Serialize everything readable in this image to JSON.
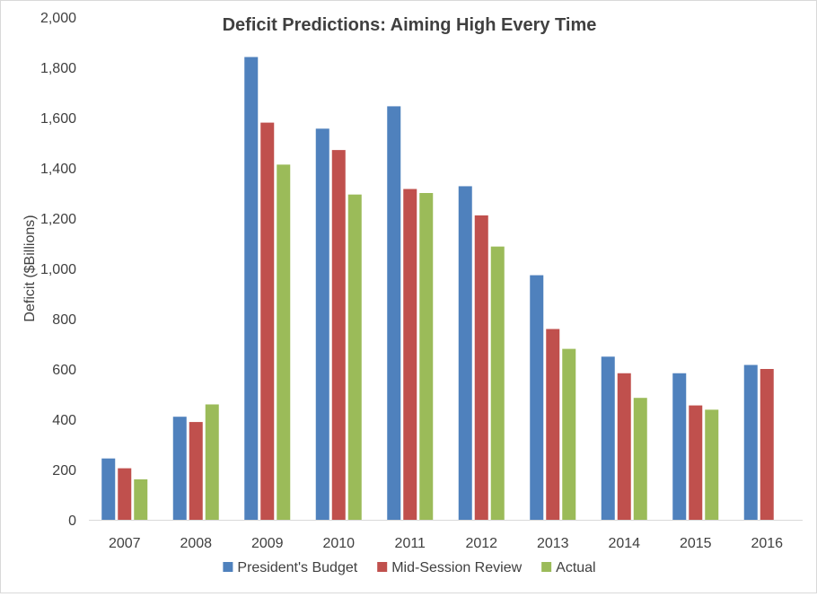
{
  "chart_data": {
    "type": "bar",
    "title": "Deficit Predictions: Aiming High Every Time",
    "xlabel": "",
    "ylabel": "Deficit ($Billions)",
    "ylim": [
      0,
      2000
    ],
    "yticks": [
      0,
      200,
      400,
      600,
      800,
      1000,
      1200,
      1400,
      1600,
      1800,
      2000
    ],
    "ytick_labels": [
      "0",
      "200",
      "400",
      "600",
      "800",
      "1,000",
      "1,200",
      "1,400",
      "1,600",
      "1,800",
      "2,000"
    ],
    "categories": [
      "2007",
      "2008",
      "2009",
      "2010",
      "2011",
      "2012",
      "2013",
      "2014",
      "2015",
      "2016"
    ],
    "series": [
      {
        "name": "President's Budget",
        "color": "#4f81bd",
        "values": [
          244,
          410,
          1841,
          1556,
          1645,
          1327,
          973,
          649,
          583,
          616
        ]
      },
      {
        "name": "Mid-Session Review",
        "color": "#c0504d",
        "values": [
          205,
          389,
          1580,
          1471,
          1316,
          1211,
          759,
          583,
          455,
          600
        ]
      },
      {
        "name": "Actual",
        "color": "#9bbb59",
        "values": [
          161,
          459,
          1413,
          1294,
          1300,
          1087,
          680,
          485,
          438,
          null
        ]
      }
    ],
    "grid": false,
    "legend": "bottom"
  }
}
